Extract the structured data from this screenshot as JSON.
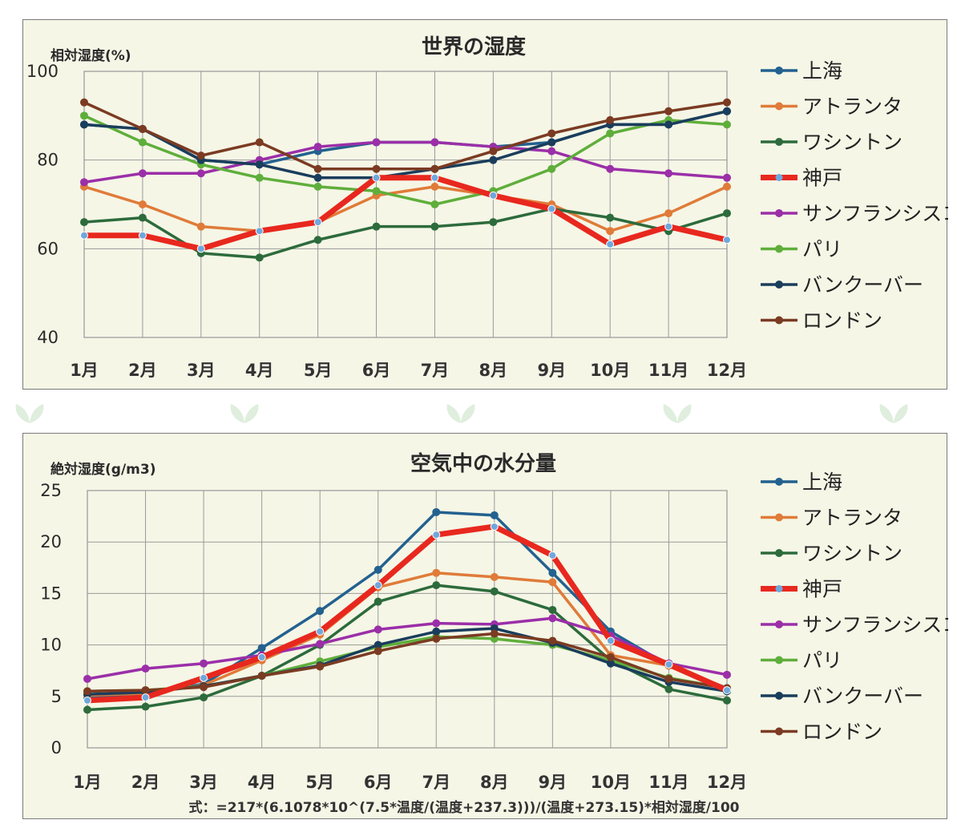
{
  "colors": {
    "panel_bg": "#f5f6e6",
    "grid": "#9a9a9a",
    "accent_kobe": "#e8281e"
  },
  "chart_data": [
    {
      "type": "line",
      "title": "世界の湿度",
      "ylabel": "相対湿度(%)",
      "ylim": [
        40,
        100
      ],
      "yticks": [
        40,
        60,
        80,
        100
      ],
      "categories": [
        "1月",
        "2月",
        "3月",
        "4月",
        "5月",
        "6月",
        "7月",
        "8月",
        "9月",
        "10月",
        "11月",
        "12月"
      ],
      "grid": true,
      "legend_position": "right",
      "series": [
        {
          "name": "上海",
          "color": "#23618f",
          "values": [
            88,
            87,
            80,
            79,
            82,
            84,
            84,
            83,
            84,
            88,
            88,
            91
          ]
        },
        {
          "name": "アトランタ",
          "color": "#e07b39",
          "values": [
            74,
            70,
            65,
            64,
            66,
            72,
            74,
            72,
            70,
            64,
            68,
            74
          ]
        },
        {
          "name": "ワシントン",
          "color": "#2d6b3c",
          "values": [
            66,
            67,
            59,
            58,
            62,
            65,
            65,
            66,
            69,
            67,
            64,
            68
          ]
        },
        {
          "name": "神戸",
          "color": "#e8281e",
          "marker": "#6fa8dc",
          "values": [
            63,
            63,
            60,
            64,
            66,
            76,
            76,
            72,
            69,
            61,
            65,
            62
          ]
        },
        {
          "name": "サンフランシスコ",
          "color": "#9b2fa8",
          "values": [
            75,
            77,
            77,
            80,
            83,
            84,
            84,
            83,
            82,
            78,
            77,
            76
          ]
        },
        {
          "name": "パリ",
          "color": "#5fae3b",
          "values": [
            90,
            84,
            79,
            76,
            74,
            73,
            70,
            73,
            78,
            86,
            89,
            88
          ]
        },
        {
          "name": "バンクーバー",
          "color": "#1a3d5c",
          "values": [
            88,
            87,
            80,
            79,
            76,
            76,
            78,
            80,
            84,
            88,
            88,
            91
          ]
        },
        {
          "name": "ロンドン",
          "color": "#7b3b22",
          "values": [
            93,
            87,
            81,
            84,
            78,
            78,
            78,
            82,
            86,
            89,
            91,
            93
          ]
        }
      ]
    },
    {
      "type": "line",
      "title": "空気中の水分量",
      "ylabel": "絶対湿度(g/m3)",
      "ylim": [
        0,
        25
      ],
      "yticks": [
        0,
        5,
        10,
        15,
        20,
        25
      ],
      "categories": [
        "1月",
        "2月",
        "3月",
        "4月",
        "5月",
        "6月",
        "7月",
        "8月",
        "9月",
        "10月",
        "11月",
        "12月"
      ],
      "grid": true,
      "legend_position": "right",
      "formula": "式：=217*(6.1078*10^(7.5*温度/(温度+237.3)))/(温度+273.15)*相対湿度/100",
      "series": [
        {
          "name": "上海",
          "color": "#23618f",
          "values": [
            4.8,
            5.3,
            6.2,
            9.7,
            13.3,
            17.3,
            22.9,
            22.6,
            17.0,
            11.3,
            8.0,
            5.8
          ]
        },
        {
          "name": "アトランタ",
          "color": "#e07b39",
          "values": [
            5.1,
            5.3,
            6.1,
            8.5,
            11.0,
            15.6,
            17.0,
            16.6,
            16.1,
            9.0,
            8.0,
            5.6
          ]
        },
        {
          "name": "ワシントン",
          "color": "#2d6b3c",
          "values": [
            3.7,
            4.0,
            4.9,
            7.0,
            10.0,
            14.2,
            15.8,
            15.2,
            13.4,
            8.5,
            5.7,
            4.6
          ]
        },
        {
          "name": "神戸",
          "color": "#e8281e",
          "marker": "#6fa8dc",
          "values": [
            4.6,
            4.9,
            6.8,
            8.8,
            11.3,
            15.8,
            20.7,
            21.5,
            18.7,
            10.4,
            8.1,
            5.6
          ]
        },
        {
          "name": "サンフランシスコ",
          "color": "#9b2fa8",
          "values": [
            6.7,
            7.7,
            8.2,
            9.0,
            10.1,
            11.5,
            12.1,
            12.0,
            12.6,
            10.9,
            8.2,
            7.1
          ]
        },
        {
          "name": "パリ",
          "color": "#5fae3b",
          "values": [
            5.5,
            5.6,
            6.0,
            7.0,
            8.4,
            9.8,
            10.8,
            10.6,
            10.0,
            8.5,
            6.8,
            5.8
          ]
        },
        {
          "name": "バンクーバー",
          "color": "#1a3d5c",
          "values": [
            5.2,
            5.4,
            6.0,
            7.0,
            8.0,
            10.0,
            11.3,
            11.6,
            10.2,
            8.2,
            6.4,
            5.5
          ]
        },
        {
          "name": "ロンドン",
          "color": "#7b3b22",
          "values": [
            5.5,
            5.6,
            5.9,
            7.0,
            7.9,
            9.4,
            10.6,
            11.1,
            10.4,
            8.8,
            6.7,
            5.8
          ]
        }
      ]
    }
  ]
}
